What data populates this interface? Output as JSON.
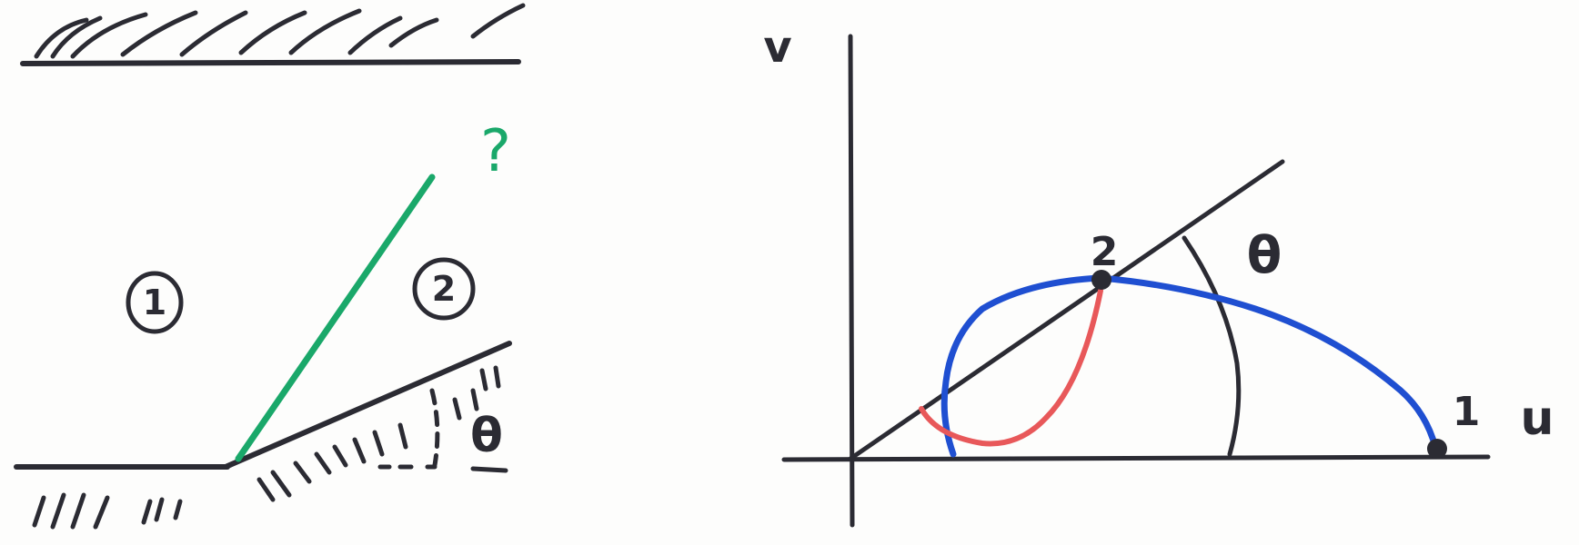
{
  "left_sketch": {
    "region_1_label": "1",
    "region_2_label": "2",
    "angle_label": "θ",
    "question_label": "?"
  },
  "right_sketch": {
    "v_axis_label": "v",
    "u_axis_label": "u",
    "point_1_label": "1",
    "point_2_label": "2",
    "angle_label": "θ"
  },
  "colors": {
    "ink": "#2b2b33",
    "green": "#1aa86a",
    "blue": "#1f4fd1",
    "red": "#e8585a",
    "question": "#1aa86a"
  }
}
